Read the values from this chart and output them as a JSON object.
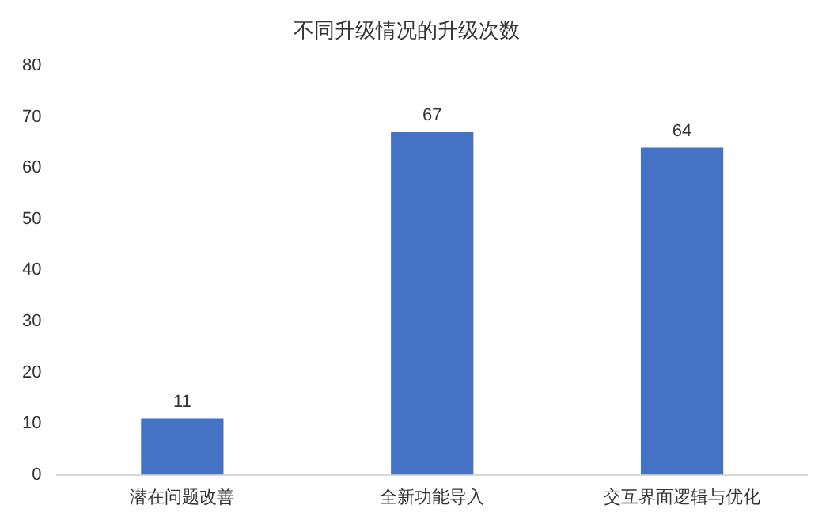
{
  "chart_data": {
    "type": "bar",
    "title": "不同升级情况的升级次数",
    "categories": [
      "潜在问题改善",
      "全新功能导入",
      "交互界面逻辑与优化"
    ],
    "values": [
      11,
      67,
      64
    ],
    "color": "#4472c4",
    "ylim": [
      0,
      80
    ],
    "yticks": [
      0,
      10,
      20,
      30,
      40,
      50,
      60,
      70,
      80
    ],
    "grid": false,
    "data_labels": true
  }
}
